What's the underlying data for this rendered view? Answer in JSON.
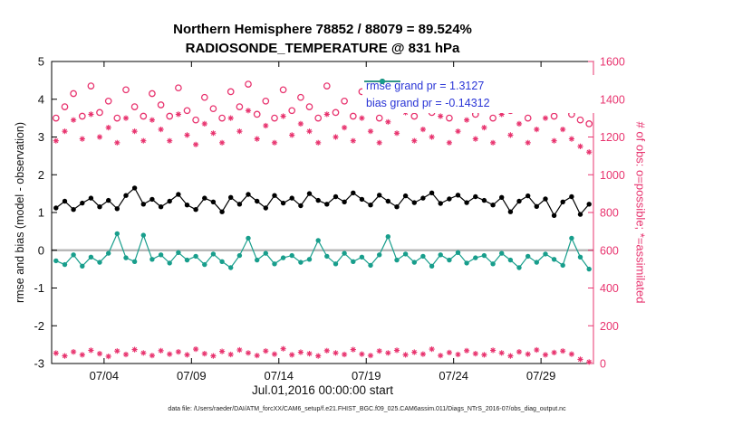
{
  "title": {
    "line1": "Northern Hemisphere 78852 / 88079 = 89.524%",
    "line2": "RADIOSONDE_TEMPERATURE @ 831 hPa"
  },
  "axes": {
    "left_label": "rmse and bias (model - observation)",
    "right_label": "# of obs: o=possible; *=assimilated",
    "x_label": "Jul.01,2016 00:00:00 start"
  },
  "legend": {
    "rmse_label": "rmse grand pr = 1.3127",
    "bias_label": "bias grand pr = -0.14312",
    "position": "top-right-inside"
  },
  "caption": "data file: /Users/raeder/DAI/ATM_forcXX/CAM6_setup/f.e21.FHIST_BGC.f09_025.CAM6assim.011/Diags_NTrS_2016-07/obs_diag_output.nc",
  "colors": {
    "pink": "#e8346f",
    "teal": "#189e8c",
    "rmse_black": "#000000",
    "legend_text": "#2a35d6",
    "zero_line": "#b8b8b8",
    "tick_text": "#111111"
  },
  "chart_data": {
    "type": "line",
    "title": "Northern Hemisphere 78852 / 88079 = 89.524% | RADIOSONDE_TEMPERATURE @ 831 hPa",
    "xlabel": "Jul.01,2016 00:00:00 start",
    "ylabel_left": "rmse and bias (model - observation)",
    "ylabel_right": "# of obs: o=possible; *=assimilated",
    "grid": false,
    "x_start_day": 0.25,
    "x_step_days": 0.5,
    "x_range_days": [
      0,
      31
    ],
    "left_ylim": [
      -3,
      5
    ],
    "right_ylim": [
      0,
      1600
    ],
    "left_yticks": [
      -3,
      -2,
      -1,
      0,
      1,
      2,
      3,
      4,
      5
    ],
    "right_yticks": [
      0,
      200,
      400,
      600,
      800,
      1000,
      1200,
      1400,
      1600
    ],
    "xticks": [
      {
        "day": 3,
        "label": "07/04"
      },
      {
        "day": 8,
        "label": "07/09"
      },
      {
        "day": 13,
        "label": "07/14"
      },
      {
        "day": 18,
        "label": "07/19"
      },
      {
        "day": 23,
        "label": "07/24"
      },
      {
        "day": 28,
        "label": "07/29"
      }
    ],
    "zero_line": {
      "axis": "left",
      "value": 0
    },
    "series": [
      {
        "name": "n-possible",
        "legend": "o=possible",
        "axis": "right",
        "marker": "circle",
        "line": false,
        "color_key": "pink",
        "values": [
          1300,
          1360,
          1430,
          1310,
          1470,
          1330,
          1390,
          1300,
          1450,
          1360,
          1310,
          1430,
          1370,
          1310,
          1460,
          1340,
          1290,
          1410,
          1350,
          1300,
          1440,
          1360,
          1480,
          1320,
          1390,
          1300,
          1450,
          1340,
          1410,
          1360,
          1300,
          1470,
          1330,
          1390,
          1310,
          1440,
          1360,
          1300,
          1420,
          1350,
          1470,
          1310,
          1380,
          1330,
          1450,
          1300,
          1360,
          1430,
          1320,
          1390,
          1300,
          1460,
          1340,
          1410,
          1300,
          1370,
          1440,
          1310,
          1380,
          1320,
          1290,
          1270
        ]
      },
      {
        "name": "n-assimilated",
        "legend": "*=assimilated",
        "axis": "right",
        "marker": "asterisk",
        "line": false,
        "color_key": "pink",
        "values": [
          1180,
          1230,
          1290,
          1190,
          1320,
          1200,
          1250,
          1170,
          1300,
          1230,
          1180,
          1290,
          1240,
          1180,
          1320,
          1210,
          1160,
          1270,
          1220,
          1170,
          1300,
          1230,
          1340,
          1190,
          1260,
          1170,
          1310,
          1210,
          1270,
          1230,
          1170,
          1320,
          1200,
          1250,
          1180,
          1300,
          1230,
          1170,
          1280,
          1220,
          1330,
          1180,
          1240,
          1200,
          1310,
          1170,
          1230,
          1290,
          1190,
          1250,
          1170,
          1320,
          1210,
          1270,
          1170,
          1240,
          1300,
          1180,
          1240,
          1190,
          1150,
          1120
        ]
      },
      {
        "name": "n-low-band",
        "legend": "",
        "axis": "right",
        "marker": "asterisk",
        "line": false,
        "color_key": "pink",
        "values": [
          55,
          40,
          62,
          46,
          70,
          52,
          38,
          66,
          48,
          74,
          56,
          42,
          68,
          50,
          62,
          46,
          76,
          52,
          40,
          64,
          48,
          72,
          56,
          42,
          66,
          50,
          78,
          46,
          60,
          52,
          40,
          68,
          56,
          48,
          74,
          50,
          42,
          66,
          56,
          70,
          46,
          60,
          50,
          76,
          42,
          58,
          48,
          68,
          52,
          46,
          70,
          56,
          40,
          62,
          50,
          72,
          46,
          58,
          66,
          50,
          22,
          8
        ]
      },
      {
        "name": "rmse",
        "legend": "rmse grand pr = 1.3127",
        "axis": "left",
        "marker": "dot",
        "line": true,
        "color_key": "rmse_black",
        "values": [
          1.12,
          1.3,
          1.08,
          1.25,
          1.38,
          1.15,
          1.32,
          1.1,
          1.45,
          1.65,
          1.22,
          1.35,
          1.15,
          1.3,
          1.48,
          1.2,
          1.08,
          1.38,
          1.28,
          1.02,
          1.4,
          1.22,
          1.48,
          1.3,
          1.12,
          1.45,
          1.25,
          1.38,
          1.18,
          1.5,
          1.32,
          1.22,
          1.42,
          1.28,
          1.52,
          1.35,
          1.2,
          1.46,
          1.3,
          1.15,
          1.44,
          1.26,
          1.38,
          1.52,
          1.24,
          1.36,
          1.46,
          1.26,
          1.42,
          1.32,
          1.2,
          1.4,
          1.02,
          1.3,
          1.44,
          1.16,
          1.36,
          0.92,
          1.28,
          1.42,
          0.95,
          1.22
        ]
      },
      {
        "name": "bias",
        "legend": "bias grand pr = -0.14312",
        "axis": "left",
        "marker": "dot",
        "line": true,
        "color_key": "teal",
        "values": [
          -0.28,
          -0.38,
          -0.12,
          -0.42,
          -0.18,
          -0.32,
          -0.08,
          0.44,
          -0.2,
          -0.3,
          0.4,
          -0.24,
          -0.12,
          -0.34,
          -0.06,
          -0.26,
          -0.16,
          -0.38,
          -0.1,
          -0.3,
          -0.46,
          -0.14,
          0.32,
          -0.26,
          -0.08,
          -0.36,
          -0.2,
          -0.14,
          -0.32,
          -0.24,
          0.26,
          -0.16,
          -0.36,
          -0.08,
          -0.3,
          -0.18,
          -0.4,
          -0.12,
          0.36,
          -0.26,
          -0.1,
          -0.32,
          -0.16,
          -0.42,
          -0.12,
          -0.26,
          -0.06,
          -0.34,
          -0.2,
          -0.14,
          -0.36,
          -0.08,
          -0.26,
          -0.46,
          -0.16,
          -0.32,
          -0.1,
          -0.24,
          -0.4,
          0.32,
          -0.18,
          -0.5
        ]
      }
    ]
  }
}
